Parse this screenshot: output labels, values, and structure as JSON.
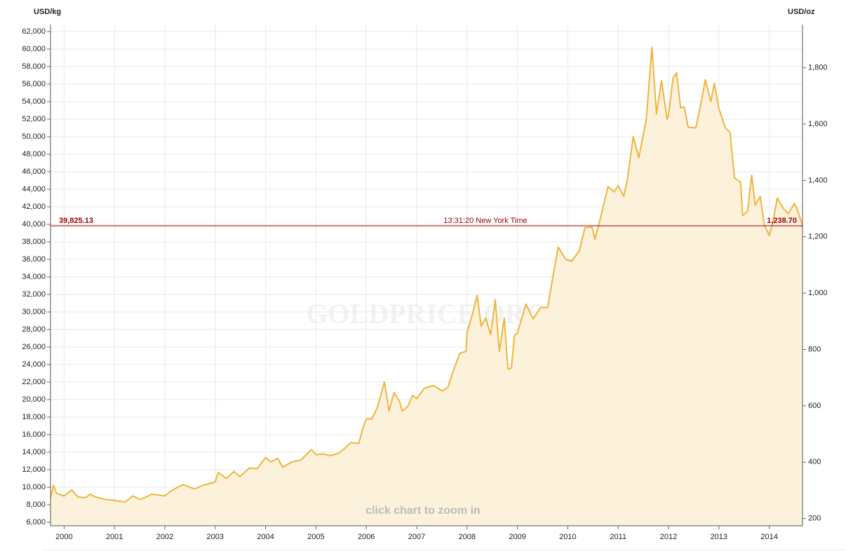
{
  "chart_data": {
    "type": "area",
    "y_axis_label": "USD/kg",
    "y2_axis_label": "USD/oz",
    "watermark": "GOLDPRICE.ORG",
    "hint": "click chart to zoom in",
    "current": {
      "value": 39825.13,
      "label": "39,825.13",
      "value_oz": 1238.7,
      "label_oz": "1,238.70",
      "time_label": "13:31:20 New York Time",
      "color": "#990000"
    },
    "xlim": [
      1999.73,
      2014.66
    ],
    "xticks": [
      2000,
      2001,
      2002,
      2003,
      2004,
      2005,
      2006,
      2007,
      2008,
      2009,
      2010,
      2011,
      2012,
      2013,
      2014
    ],
    "ylim": [
      5600,
      62800
    ],
    "yticks": [
      {
        "value": 6000,
        "label": "6,000"
      },
      {
        "value": 8000,
        "label": "8,000"
      },
      {
        "value": 10000,
        "label": "10,000"
      },
      {
        "value": 12000,
        "label": "12,000"
      },
      {
        "value": 14000,
        "label": "14,000"
      },
      {
        "value": 16000,
        "label": "16,000"
      },
      {
        "value": 18000,
        "label": "18,000"
      },
      {
        "value": 20000,
        "label": "20,000"
      },
      {
        "value": 22000,
        "label": "22,000"
      },
      {
        "value": 24000,
        "label": "24,000"
      },
      {
        "value": 26000,
        "label": "26,000"
      },
      {
        "value": 28000,
        "label": "28,000"
      },
      {
        "value": 30000,
        "label": "30,000"
      },
      {
        "value": 32000,
        "label": "32,000"
      },
      {
        "value": 34000,
        "label": "34,000"
      },
      {
        "value": 36000,
        "label": "36,000"
      },
      {
        "value": 38000,
        "label": "38,000"
      },
      {
        "value": 40000,
        "label": "40,000"
      },
      {
        "value": 42000,
        "label": "42,000"
      },
      {
        "value": 44000,
        "label": "44,000"
      },
      {
        "value": 46000,
        "label": "46,000"
      },
      {
        "value": 48000,
        "label": "48,000"
      },
      {
        "value": 50000,
        "label": "50,000"
      },
      {
        "value": 52000,
        "label": "52,000"
      },
      {
        "value": 54000,
        "label": "54,000"
      },
      {
        "value": 56000,
        "label": "56,000"
      },
      {
        "value": 58000,
        "label": "58,000"
      },
      {
        "value": 60000,
        "label": "60,000"
      },
      {
        "value": 62000,
        "label": "62,000"
      }
    ],
    "y2lim": [
      174.2,
      1953.3
    ],
    "y2ticks": [
      200,
      400,
      600,
      800,
      {
        "value": 1000,
        "label": "1,000"
      },
      {
        "value": 1200,
        "label": "1,200"
      },
      {
        "value": 1400,
        "label": "1,400"
      },
      {
        "value": 1600,
        "label": "1,600"
      },
      {
        "value": 1800,
        "label": "1,800"
      }
    ],
    "grid": true,
    "line_color": "#f0b43c",
    "fill_color": "#fcf2dc",
    "x": [
      1999.73,
      1999.79,
      1999.85,
      2000.0,
      2000.15,
      2000.27,
      2000.42,
      2000.52,
      2000.61,
      2000.83,
      2001.0,
      2001.21,
      2001.36,
      2001.52,
      2001.74,
      2002.0,
      2002.13,
      2002.36,
      2002.59,
      2002.75,
      2003.0,
      2003.06,
      2003.22,
      2003.37,
      2003.49,
      2003.68,
      2003.83,
      2004.0,
      2004.1,
      2004.24,
      2004.34,
      2004.53,
      2004.7,
      2004.91,
      2005.0,
      2005.13,
      2005.29,
      2005.46,
      2005.7,
      2005.85,
      2005.94,
      2006.0,
      2006.11,
      2006.22,
      2006.36,
      2006.45,
      2006.55,
      2006.66,
      2006.71,
      2006.82,
      2006.92,
      2007.0,
      2007.15,
      2007.33,
      2007.51,
      2007.62,
      2007.74,
      2007.86,
      2007.98,
      2008.0,
      2008.1,
      2008.2,
      2008.28,
      2008.37,
      2008.47,
      2008.56,
      2008.64,
      2008.74,
      2008.81,
      2008.88,
      2008.94,
      2009.0,
      2009.17,
      2009.31,
      2009.46,
      2009.6,
      2009.7,
      2009.81,
      2009.96,
      2010.08,
      2010.23,
      2010.34,
      2010.48,
      2010.54,
      2010.66,
      2010.8,
      2010.92,
      2011.0,
      2011.11,
      2011.18,
      2011.3,
      2011.41,
      2011.56,
      2011.67,
      2011.76,
      2011.86,
      2011.97,
      2012.0,
      2012.09,
      2012.16,
      2012.24,
      2012.31,
      2012.39,
      2012.54,
      2012.66,
      2012.73,
      2012.84,
      2012.91,
      2013.0,
      2013.13,
      2013.22,
      2013.31,
      2013.43,
      2013.47,
      2013.57,
      2013.65,
      2013.72,
      2013.82,
      2013.9,
      2014.0,
      2014.07,
      2014.16,
      2014.28,
      2014.38,
      2014.5,
      2014.57,
      2014.66
    ],
    "values": [
      8800,
      10200,
      9300,
      9000,
      9700,
      8900,
      8800,
      9200,
      8900,
      8600,
      8500,
      8300,
      9000,
      8600,
      9200,
      9000,
      9600,
      10300,
      9800,
      10200,
      10600,
      11700,
      11000,
      11800,
      11200,
      12200,
      12100,
      13400,
      12900,
      13300,
      12300,
      12900,
      13100,
      14300,
      13700,
      13800,
      13600,
      13900,
      15100,
      15000,
      16900,
      17800,
      17800,
      19100,
      22000,
      18700,
      20800,
      19800,
      18700,
      19200,
      20500,
      20100,
      21300,
      21600,
      21000,
      21400,
      23500,
      25300,
      25500,
      27700,
      29600,
      31900,
      28400,
      29300,
      27400,
      31400,
      25500,
      29300,
      23500,
      23600,
      27300,
      27600,
      30900,
      29200,
      30500,
      30500,
      33900,
      37400,
      36000,
      35800,
      37000,
      39600,
      39700,
      38300,
      41000,
      44300,
      43700,
      44400,
      43200,
      45000,
      50000,
      47600,
      52000,
      60200,
      52600,
      56400,
      52000,
      52400,
      56700,
      57300,
      53300,
      53400,
      51100,
      51000,
      54300,
      56500,
      54000,
      56100,
      53200,
      51000,
      50500,
      45300,
      44800,
      41000,
      41500,
      45600,
      42200,
      43200,
      40000,
      38700,
      40200,
      43000,
      41800,
      41200,
      42400,
      41500,
      39800
    ]
  }
}
